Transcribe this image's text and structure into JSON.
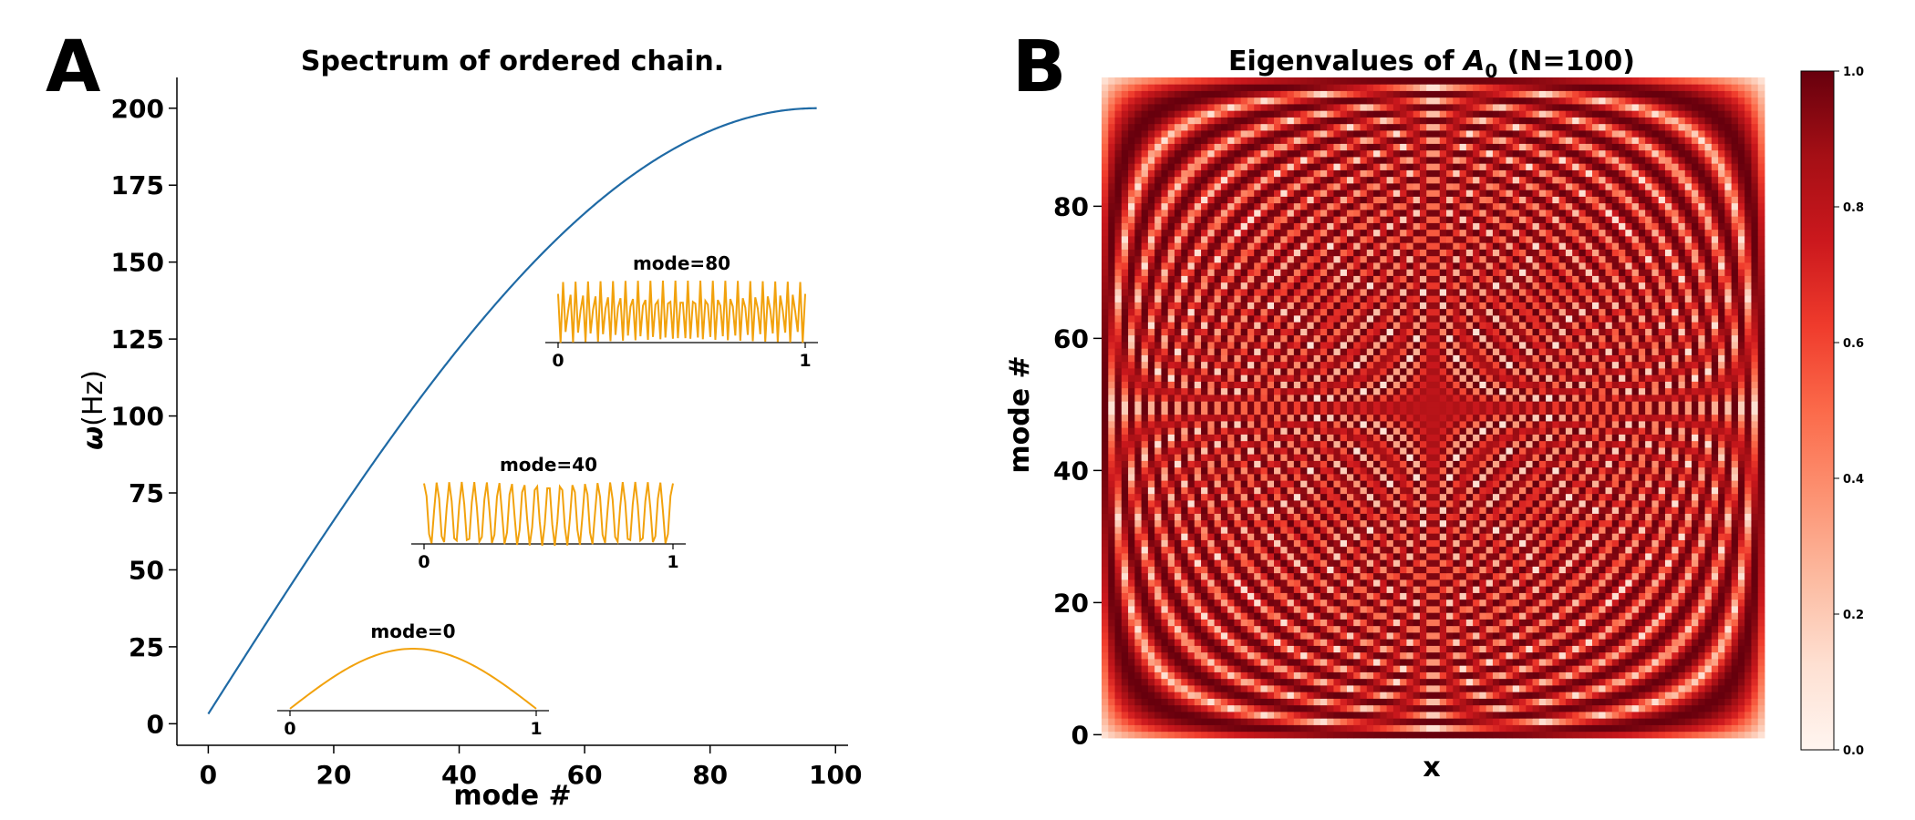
{
  "chart_data": [
    {
      "panel": "A",
      "type": "line",
      "title": "Spectrum of ordered chain.",
      "xlabel": "mode #",
      "ylabel_symbol": "ω",
      "ylabel_unit": "(Hz)",
      "xlim": [
        -5,
        102
      ],
      "ylim": [
        -7,
        210
      ],
      "xticks": [
        0,
        20,
        40,
        60,
        80,
        100
      ],
      "yticks": [
        0,
        25,
        50,
        75,
        100,
        125,
        150,
        175,
        200
      ],
      "series": [
        {
          "color": "#1f6aa5",
          "formula": "omega = 200*sin(pi*(n+1)/(2*(N+1))), N=97",
          "x_range": [
            0,
            97
          ]
        }
      ],
      "insets": [
        {
          "label": "mode=0",
          "mode": 0,
          "xticks": [
            "0",
            "1"
          ],
          "color": "#f2a20d"
        },
        {
          "label": "mode=40",
          "mode": 40,
          "xticks": [
            "0",
            "1"
          ],
          "color": "#f2a20d"
        },
        {
          "label": "mode=80",
          "mode": 80,
          "xticks": [
            "0",
            "1"
          ],
          "color": "#f2a20d"
        }
      ]
    },
    {
      "panel": "B",
      "type": "heatmap",
      "title_prefix": "Eigenvalues of ",
      "title_symbol": "A",
      "title_subscript": "0",
      "title_suffix": " (N=100)",
      "xlabel": "x",
      "ylabel": "mode #",
      "N": 100,
      "yticks": [
        0,
        20,
        40,
        60,
        80
      ],
      "colormap": "Reds",
      "colormap_stops": [
        "#fff5f0",
        "#fee0d2",
        "#fcbba1",
        "#fc9272",
        "#fb6a4a",
        "#ef3b2c",
        "#cb181d",
        "#a50f15",
        "#67000d"
      ],
      "colorbar_ticks": [
        "0.0",
        "0.2",
        "0.4",
        "0.6",
        "0.8",
        "1.0"
      ],
      "value_formula": "|sin(pi*(m+1)*(x+1)/(N+1))|^0.6"
    }
  ],
  "panel_labels": {
    "a": "A",
    "b": "B"
  }
}
